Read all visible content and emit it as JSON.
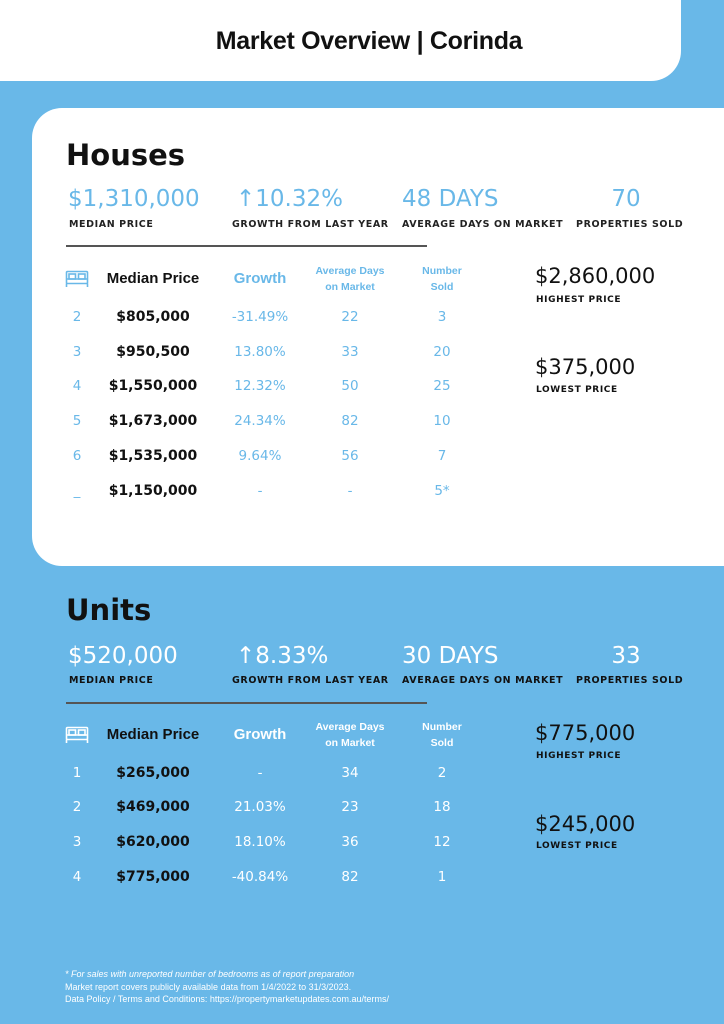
{
  "header": {
    "title": "Market Overview | Corinda"
  },
  "houses": {
    "title": "Houses",
    "stats": {
      "median_price": {
        "value": "$1,310,000",
        "label": "MEDIAN PRICE"
      },
      "growth": {
        "value": "↑10.32%",
        "label": "GROWTH FROM LAST YEAR"
      },
      "days": {
        "value": "48 DAYS",
        "label": "AVERAGE DAYS ON MARKET"
      },
      "sold": {
        "value": "70",
        "label": "PROPERTIES SOLD"
      }
    },
    "table": {
      "headers": {
        "price": "Median Price",
        "growth": "Growth",
        "days_1": "Average Days",
        "days_2": "on Market",
        "sold_1": "Number",
        "sold_2": "Sold"
      },
      "rows": [
        {
          "beds": "2",
          "price": "$805,000",
          "growth": "-31.49%",
          "days": "22",
          "sold": "3"
        },
        {
          "beds": "3",
          "price": "$950,500",
          "growth": "13.80%",
          "days": "33",
          "sold": "20"
        },
        {
          "beds": "4",
          "price": "$1,550,000",
          "growth": "12.32%",
          "days": "50",
          "sold": "25"
        },
        {
          "beds": "5",
          "price": "$1,673,000",
          "growth": "24.34%",
          "days": "82",
          "sold": "10"
        },
        {
          "beds": "6",
          "price": "$1,535,000",
          "growth": "9.64%",
          "days": "56",
          "sold": "7"
        },
        {
          "beds": "_",
          "price": "$1,150,000",
          "growth": "-",
          "days": "-",
          "sold": "5*"
        }
      ]
    },
    "highest": {
      "value": "$2,860,000",
      "label": "HIGHEST PRICE"
    },
    "lowest": {
      "value": "$375,000",
      "label": "LOWEST PRICE"
    }
  },
  "units": {
    "title": "Units",
    "stats": {
      "median_price": {
        "value": "$520,000",
        "label": "MEDIAN PRICE"
      },
      "growth": {
        "value": "↑8.33%",
        "label": "GROWTH FROM LAST YEAR"
      },
      "days": {
        "value": "30 DAYS",
        "label": "AVERAGE DAYS ON MARKET"
      },
      "sold": {
        "value": "33",
        "label": "PROPERTIES SOLD"
      }
    },
    "table": {
      "headers": {
        "price": "Median Price",
        "growth": "Growth",
        "days_1": "Average Days",
        "days_2": "on Market",
        "sold_1": "Number",
        "sold_2": "Sold"
      },
      "rows": [
        {
          "beds": "1",
          "price": "$265,000",
          "growth": "-",
          "days": "34",
          "sold": "2"
        },
        {
          "beds": "2",
          "price": "$469,000",
          "growth": "21.03%",
          "days": "23",
          "sold": "18"
        },
        {
          "beds": "3",
          "price": "$620,000",
          "growth": "18.10%",
          "days": "36",
          "sold": "12"
        },
        {
          "beds": "4",
          "price": "$775,000",
          "growth": "-40.84%",
          "days": "82",
          "sold": "1"
        }
      ]
    },
    "highest": {
      "value": "$775,000",
      "label": "HIGHEST PRICE"
    },
    "lowest": {
      "value": "$245,000",
      "label": "LOWEST PRICE"
    }
  },
  "footer": {
    "note": "* For sales with unreported number of bedrooms as of report preparation",
    "coverage": "Market report covers publicly available data from 1/4/2022 to 31/3/2023.",
    "terms": "Data Policy / Terms and Conditions: https://propertymarketupdates.com.au/terms/"
  },
  "icons": {
    "bed": "bed-icon"
  },
  "colors": {
    "accent": "#69b8e8",
    "negative": "#e02020",
    "text": "#111111"
  }
}
